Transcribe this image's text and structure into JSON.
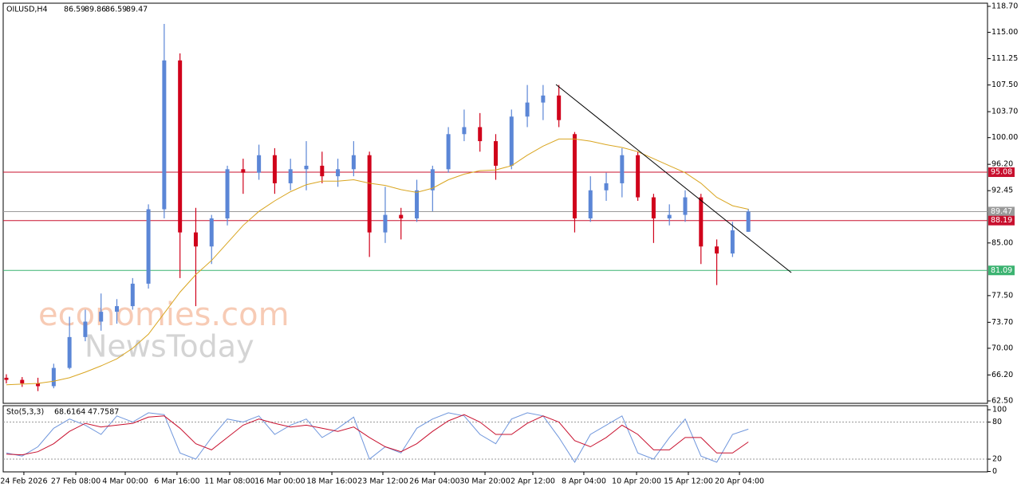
{
  "chart_data": [
    {
      "type": "candlestick",
      "title": "OILUSD,H4",
      "title_values": [
        86.59,
        89.86,
        86.59,
        89.47
      ],
      "up_color": "#5b86d6",
      "down_color": "#d0021b",
      "open": [
        65.8,
        65.5,
        65.0,
        64.6,
        67.2,
        71.6,
        73.8,
        75.2,
        76.0,
        79.2,
        89.8,
        111.0,
        86.5,
        84.5,
        88.5,
        95.5,
        95.0,
        97.5,
        93.5,
        95.5,
        96.0,
        94.5,
        95.5,
        97.5,
        86.5,
        89.0,
        88.5,
        92.5,
        95.5,
        100.5,
        101.5,
        99.5,
        96.0,
        103.0,
        105.0,
        106.0,
        100.5,
        88.5,
        92.5,
        93.5,
        97.5,
        91.5,
        88.5,
        89.0,
        91.5,
        84.5,
        83.5,
        86.59
      ],
      "high": [
        66.3,
        65.9,
        65.8,
        67.8,
        74.5,
        75.5,
        77.8,
        77.0,
        80.0,
        90.5,
        116.2,
        112.0,
        90.0,
        89.0,
        96.0,
        97.0,
        99.0,
        98.5,
        97.0,
        99.5,
        98.0,
        97.0,
        99.5,
        98.0,
        93.0,
        90.0,
        94.0,
        96.0,
        101.5,
        104.0,
        103.5,
        100.5,
        104.0,
        107.5,
        107.5,
        107.5,
        100.8,
        94.5,
        95.0,
        98.5,
        98.0,
        92.0,
        90.5,
        92.5,
        92.0,
        85.5,
        88.0,
        89.86
      ],
      "low": [
        65.0,
        64.5,
        63.9,
        64.3,
        67.0,
        71.0,
        72.5,
        73.5,
        75.5,
        78.5,
        88.5,
        80.0,
        76.0,
        82.0,
        87.5,
        92.0,
        94.0,
        92.0,
        92.5,
        92.5,
        93.5,
        93.0,
        94.5,
        83.0,
        85.0,
        85.5,
        88.0,
        89.5,
        95.0,
        99.5,
        98.0,
        94.0,
        95.5,
        101.5,
        102.5,
        101.5,
        86.5,
        88.0,
        91.0,
        91.5,
        91.0,
        85.0,
        87.5,
        88.0,
        82.0,
        79.0,
        83.0,
        86.59
      ],
      "close": [
        65.5,
        65.0,
        64.6,
        67.2,
        71.6,
        73.8,
        75.2,
        76.0,
        79.2,
        89.8,
        111.0,
        86.5,
        84.5,
        88.5,
        95.5,
        95.0,
        97.5,
        93.5,
        95.5,
        96.0,
        94.5,
        95.5,
        97.5,
        86.5,
        89.0,
        88.5,
        92.5,
        95.5,
        100.5,
        101.5,
        99.5,
        96.0,
        103.0,
        105.0,
        106.0,
        102.5,
        88.5,
        92.5,
        93.5,
        97.5,
        91.5,
        88.5,
        89.0,
        91.5,
        84.5,
        83.5,
        86.8,
        89.47
      ],
      "ma": {
        "color": "#d9a520",
        "values": [
          64.8,
          64.9,
          65.0,
          65.3,
          65.8,
          66.6,
          67.5,
          68.5,
          70.0,
          72.0,
          75.0,
          78.0,
          80.5,
          82.5,
          85.0,
          87.5,
          89.5,
          91.0,
          92.3,
          93.3,
          93.8,
          93.8,
          94.0,
          93.5,
          93.2,
          92.6,
          92.2,
          92.8,
          94.0,
          94.8,
          95.3,
          95.4,
          96.0,
          97.5,
          98.8,
          99.8,
          99.8,
          99.5,
          99.0,
          98.6,
          98.0,
          97.0,
          96.0,
          95.0,
          93.5,
          91.5,
          90.3,
          89.8
        ]
      },
      "levels": [
        {
          "value": 95.08,
          "color": "#c8102e"
        },
        {
          "value": 89.47,
          "color": "#9a9a9a"
        },
        {
          "value": 88.19,
          "color": "#c8102e"
        },
        {
          "value": 81.09,
          "color": "#3cb371"
        }
      ],
      "xlim": [
        -0.2,
        62.15
      ],
      "ylim": [
        62.16,
        119.15
      ],
      "yticks": [
        {
          "value": 118.7,
          "label": "118.70"
        },
        {
          "value": 115,
          "label": "115.00"
        },
        111.25,
        {
          "value": 107.5,
          "label": "107.50"
        },
        {
          "value": 103.7,
          "label": "103.70"
        },
        {
          "value": 100,
          "label": "100.00"
        },
        {
          "value": 96.2,
          "label": "96.20"
        },
        92.45,
        {
          "value": 85,
          "label": "85.00"
        },
        {
          "value": 77.5,
          "label": "77.50"
        },
        {
          "value": 73.7,
          "label": "73.70"
        },
        {
          "value": 70,
          "label": "70.00"
        },
        {
          "value": 66.2,
          "label": "66.20"
        },
        {
          "value": 62.5,
          "label": "62.50"
        }
      ],
      "xticks": [
        {
          "value": 1.11,
          "label": "24 Feb 2026"
        },
        {
          "value": 4.4,
          "label": "27 Feb 08:00"
        },
        {
          "value": 7.53,
          "label": "4 Mar 00:00"
        },
        {
          "value": 10.81,
          "label": "6 Mar 16:00"
        },
        {
          "value": 14.15,
          "label": "11 Mar 08:00"
        },
        {
          "value": 17.33,
          "label": "16 Mar 00:00"
        },
        {
          "value": 20.62,
          "label": "18 Mar 16:00"
        },
        {
          "value": 23.85,
          "label": "23 Mar 12:00"
        },
        {
          "value": 27.13,
          "label": "26 Mar 04:00"
        },
        {
          "value": 30.32,
          "label": "30 Mar 20:00"
        },
        {
          "value": 33.35,
          "label": "2 Apr 12:00"
        },
        {
          "value": 36.58,
          "label": "8 Apr 04:00"
        },
        {
          "value": 39.92,
          "label": "10 Apr 20:00"
        },
        {
          "value": 43.2,
          "label": "15 Apr 12:00"
        },
        {
          "value": 46.44,
          "label": "20 Apr 04:00"
        }
      ]
    },
    {
      "type": "line",
      "title": "Sto(5,3,3)",
      "title_values": [
        68.6164,
        47.7587
      ],
      "series": [
        {
          "color": "#6f96dc",
          "values": [
            30,
            25,
            40,
            70,
            85,
            75,
            60,
            90,
            80,
            95,
            92,
            30,
            20,
            55,
            85,
            80,
            90,
            60,
            75,
            85,
            55,
            70,
            88,
            20,
            40,
            30,
            70,
            85,
            95,
            90,
            60,
            45,
            85,
            95,
            90,
            55,
            15,
            60,
            75,
            90,
            30,
            20,
            55,
            85,
            25,
            15,
            60,
            68.6
          ]
        },
        {
          "color": "#c8102e",
          "values": [
            28,
            27,
            32,
            45,
            65,
            78,
            72,
            75,
            78,
            88,
            90,
            70,
            45,
            35,
            55,
            75,
            85,
            78,
            72,
            75,
            70,
            65,
            72,
            55,
            40,
            32,
            45,
            65,
            82,
            92,
            80,
            60,
            60,
            78,
            90,
            80,
            50,
            40,
            55,
            75,
            60,
            35,
            35,
            55,
            55,
            30,
            30,
            47.8
          ]
        }
      ],
      "ylim": [
        -0.6,
        106.5
      ],
      "yticks": [
        100,
        80,
        20,
        0
      ],
      "dashed_grid": [
        80,
        20
      ]
    }
  ],
  "watermark": [
    "economies.com",
    "NewsToday"
  ]
}
